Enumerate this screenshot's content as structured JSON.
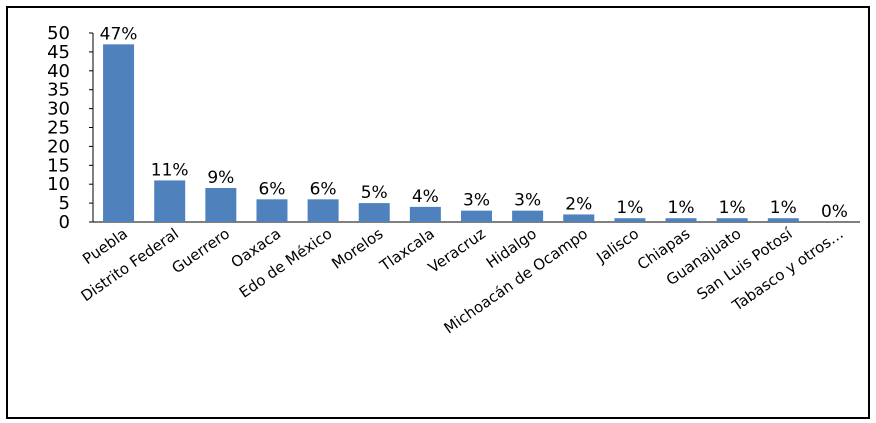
{
  "chart_data": {
    "type": "bar",
    "title": "",
    "xlabel": "",
    "ylabel": "",
    "ylim": [
      0,
      50
    ],
    "yticks": [
      0,
      5,
      10,
      15,
      20,
      25,
      30,
      35,
      40,
      45,
      50
    ],
    "grid": false,
    "legend": "none",
    "bar_color": "#4f81bd",
    "categories": [
      "Puebla",
      "Distrito Federal",
      "Guerrero",
      "Oaxaca",
      "Edo de México",
      "Morelos",
      "Tlaxcala",
      "Veracruz",
      "Hidalgo",
      "Michoacán de Ocampo",
      "Jalisco",
      "Chiapas",
      "Guanajuato",
      "San Luis Potosí",
      "Tabasco y otros…"
    ],
    "values": [
      47,
      11,
      9,
      6,
      6,
      5,
      4,
      3,
      3,
      2,
      1,
      1,
      1,
      1,
      0
    ],
    "data_labels": [
      "47%",
      "11%",
      "9%",
      "6%",
      "6%",
      "5%",
      "4%",
      "3%",
      "3%",
      "2%",
      "1%",
      "1%",
      "1%",
      "1%",
      "0%"
    ]
  }
}
